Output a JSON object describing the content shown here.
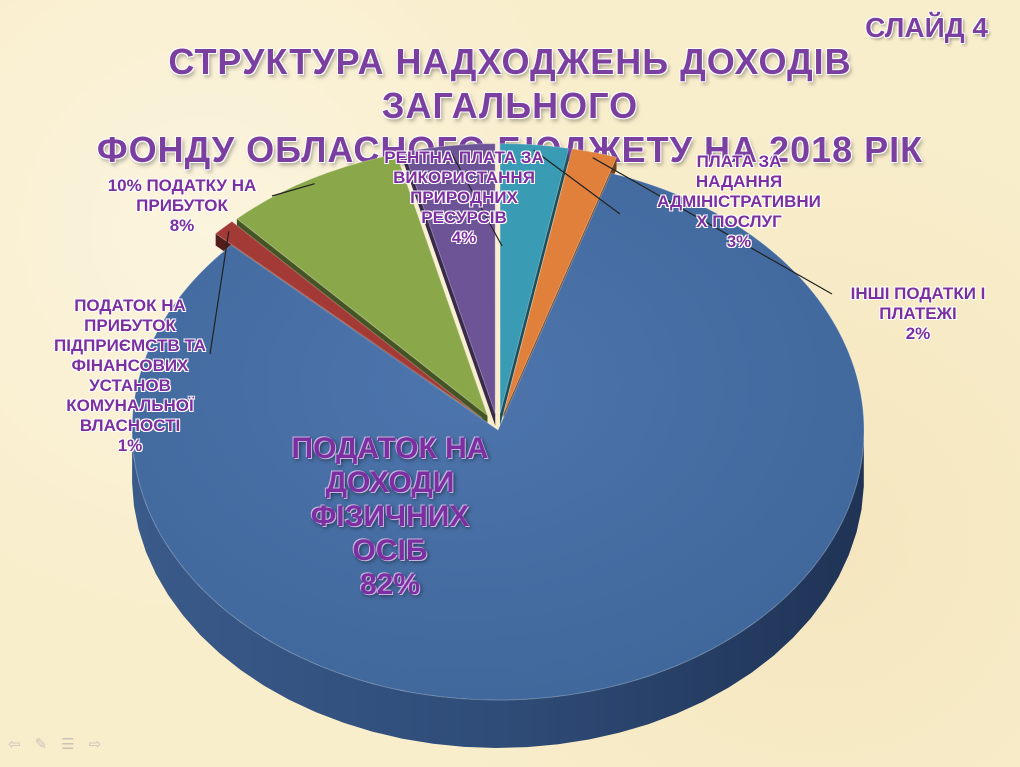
{
  "slide_label": "СЛАЙД 4",
  "title_line1": "СТРУКТУРА НАДХОДЖЕНЬ ДОХОДІВ ЗАГАЛЬНОГО",
  "title_line2": "ФОНДУ ОБЛАСНОГО БЮДЖЕТУ НА 2018 РІК",
  "chart_data": {
    "type": "pie",
    "title": "",
    "slices": [
      {
        "label": "ПОДАТОК НА ДОХОДИ ФІЗИЧНИХ ОСІБ",
        "value": 82,
        "value_label": "82%",
        "color": "#4a6fa5"
      },
      {
        "label": "ПОДАТОК НА ПРИБУТОК ПІДПРИЄМСТВ ТА ФІНАНСОВИХ УСТАНОВ КОМУНАЛЬНОЇ ВЛАСНОСТІ",
        "value": 1,
        "value_label": "1%",
        "color": "#a33a36"
      },
      {
        "label": "10% ПОДАТКУ НА ПРИБУТОК",
        "value": 8,
        "value_label": "8%",
        "color": "#8aa84a"
      },
      {
        "label": "РЕНТНА ПЛАТА ЗА ВИКОРИСТАННЯ ПРИРОДНИХ РЕСУРСІВ",
        "value": 4,
        "value_label": "4%",
        "color": "#6d5496"
      },
      {
        "label": "ПЛАТА ЗА НАДАННЯ АДМІНІСТРАТИВНИХ ПОСЛУГ",
        "value": 3,
        "value_label": "3%",
        "color": "#3a9bb5"
      },
      {
        "label": "ІНШІ ПОДАТКИ І ПЛАТЕЖІ",
        "value": 2,
        "value_label": "2%",
        "color": "#e0803a"
      }
    ],
    "label_lines": {
      "s0": [
        "ПОДАТОК НА",
        "ДОХОДИ",
        "ФІЗИЧНИХ",
        "ОСІБ"
      ],
      "s1": [
        "ПОДАТОК НА",
        "ПРИБУТОК",
        "ПІДПРИЄМСТВ ТА",
        "ФІНАНСОВИХ",
        "УСТАНОВ",
        "КОМУНАЛЬНОЇ",
        "ВЛАСНОСТІ"
      ],
      "s2": [
        "10% ПОДАТКУ НА",
        "ПРИБУТОК"
      ],
      "s3": [
        "РЕНТНА ПЛАТА ЗА",
        "ВИКОРИСТАННЯ",
        "ПРИРОДНИХ",
        "РЕСУРСІВ"
      ],
      "s4": [
        "ПЛАТА ЗА",
        "НАДАННЯ",
        "АДМІНІСТРАТИВНИ",
        "Х ПОСЛУГ"
      ],
      "s5": [
        "ІНШІ ПОДАТКИ І",
        "ПЛАТЕЖІ"
      ]
    },
    "legend": "none",
    "three_d": true
  },
  "nav_icons": [
    "arrow-left-icon",
    "pen-icon",
    "menu-icon",
    "arrow-right-icon"
  ]
}
